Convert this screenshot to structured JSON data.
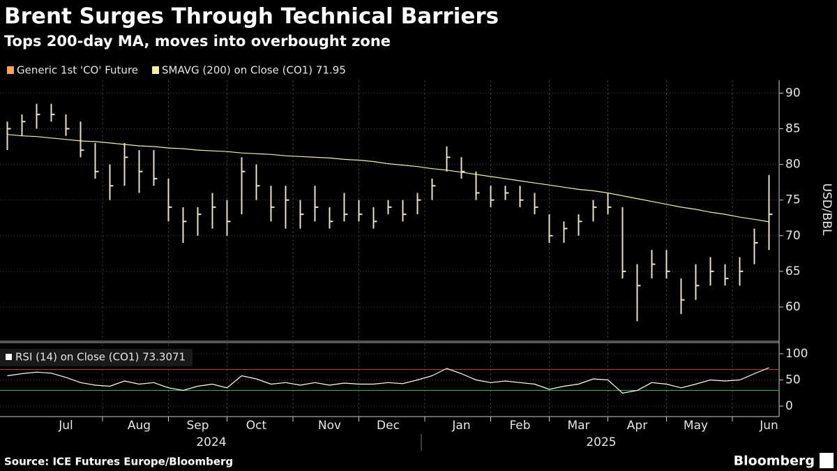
{
  "chart_data": [
    {
      "type": "ohlc",
      "title": "Brent Surges Through Technical Barriers",
      "subtitle": "Tops 200-day MA, moves into overbought zone",
      "y_label": "USD/BBL",
      "source": "Source: ICE Futures Europe/Bloomberg",
      "brand": "Bloomberg",
      "ylim": [
        55.3,
        91.8
      ],
      "yticks": [
        60,
        65,
        70,
        75,
        80,
        85,
        90
      ],
      "grid": true,
      "series": [
        {
          "name": "Generic 1st 'CO' Future",
          "color": "#f4a460",
          "bar_color": "#e6e0cc",
          "high": [
            86,
            87,
            88.5,
            88.5,
            87,
            86,
            83,
            80,
            83,
            82,
            82,
            78,
            74,
            74,
            76,
            75,
            81,
            80,
            77,
            77,
            75,
            77,
            74,
            76,
            75,
            74,
            75,
            75,
            76,
            78,
            82.5,
            81,
            79,
            77,
            77,
            77,
            76,
            73,
            72,
            73,
            75,
            76,
            74,
            66,
            68,
            68,
            64,
            66,
            67,
            66,
            67,
            71,
            78.5
          ],
          "low": [
            82,
            84,
            85,
            86,
            84,
            81,
            78,
            75,
            77,
            76,
            77,
            72,
            69,
            70,
            71,
            70,
            73,
            75,
            72,
            71,
            71,
            72,
            71,
            72,
            72,
            71,
            73,
            72,
            73,
            75,
            79,
            78,
            75,
            74,
            75,
            74,
            73,
            69,
            69,
            70,
            72,
            73,
            64,
            58,
            64,
            64,
            59,
            61,
            63,
            63,
            63,
            66,
            68
          ],
          "close": [
            85,
            86,
            87,
            87,
            85,
            82,
            79,
            77,
            81,
            79,
            78,
            74,
            72,
            73,
            74,
            72,
            79,
            77,
            74,
            75,
            73,
            74,
            72,
            73,
            73,
            72,
            74,
            73,
            75,
            77,
            81,
            79,
            76,
            75,
            76,
            75,
            74,
            70,
            71,
            72,
            74,
            74,
            65,
            63,
            66,
            65,
            61,
            63,
            65,
            64,
            65,
            69,
            73
          ]
        },
        {
          "name": "SMAVG (200)  on Close (CO1) 71.95",
          "color": "#f2f2a0",
          "values": [
            84.2,
            84.0,
            83.9,
            83.7,
            83.5,
            83.3,
            83.2,
            83.0,
            82.8,
            82.6,
            82.5,
            82.3,
            82.2,
            82.0,
            81.9,
            81.8,
            81.6,
            81.5,
            81.4,
            81.2,
            81.1,
            81.0,
            80.9,
            80.7,
            80.6,
            80.4,
            80.1,
            79.9,
            79.7,
            79.4,
            79.2,
            78.9,
            78.6,
            78.3,
            78.0,
            77.7,
            77.4,
            77.1,
            76.8,
            76.5,
            76.3,
            76.0,
            75.6,
            75.2,
            74.8,
            74.4,
            74.0,
            73.7,
            73.3,
            73.0,
            72.6,
            72.3,
            71.95
          ]
        }
      ]
    },
    {
      "type": "line",
      "categories": [
        null,
        null,
        null,
        null,
        "Jul",
        null,
        null,
        null,
        null,
        "Aug",
        null,
        null,
        null,
        "Sep",
        null,
        null,
        null,
        "Oct",
        null,
        null,
        null,
        null,
        "Nov",
        null,
        null,
        null,
        "Dec",
        null,
        null,
        null,
        null,
        "Jan",
        null,
        null,
        null,
        "Feb",
        null,
        null,
        null,
        "Mar",
        null,
        null,
        null,
        "Apr",
        null,
        null,
        null,
        "May",
        null,
        null,
        null,
        null,
        "Jun"
      ],
      "x_group_labels": [
        "2024",
        "2025"
      ],
      "ylim": [
        -20,
        116
      ],
      "yticks": [
        0,
        50,
        100
      ],
      "grid": true,
      "levels": [
        {
          "value": 70,
          "color": "#c0392b"
        },
        {
          "value": 30,
          "color": "#3fae49"
        }
      ],
      "series": [
        {
          "name": "RSI (14)  on Close (CO1) 73.3071",
          "color": "#ffffff",
          "values": [
            58,
            62,
            65,
            63,
            55,
            45,
            40,
            38,
            48,
            42,
            45,
            35,
            30,
            38,
            42,
            35,
            58,
            52,
            42,
            45,
            40,
            45,
            40,
            44,
            42,
            42,
            45,
            43,
            50,
            58,
            72,
            62,
            50,
            45,
            48,
            45,
            42,
            32,
            38,
            42,
            52,
            50,
            25,
            30,
            45,
            42,
            35,
            42,
            50,
            48,
            50,
            62,
            73.3071
          ]
        }
      ]
    }
  ]
}
